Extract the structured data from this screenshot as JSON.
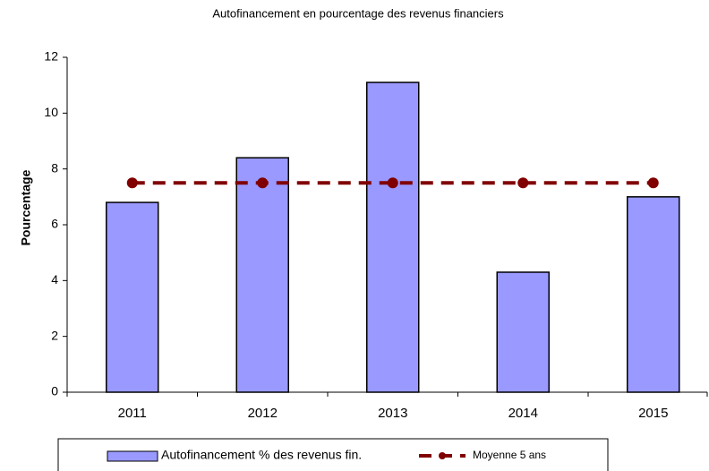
{
  "chart_data": {
    "type": "bar",
    "title": "Autofinancement en pourcentage des revenus financiers",
    "y_label": "Pourcentage",
    "categories": [
      "2011",
      "2012",
      "2013",
      "2014",
      "2015"
    ],
    "series": [
      {
        "name": "Autofinancement % des revenus fin.",
        "color": "#9999ff",
        "type": "bar",
        "values": [
          6.8,
          8.4,
          11.1,
          4.3,
          7.0
        ]
      },
      {
        "name": "Moyenne 5 ans",
        "color": "#800000",
        "type": "line",
        "values": [
          7.5,
          7.5,
          7.5,
          7.5,
          7.5
        ]
      }
    ],
    "ylim": [
      0,
      12
    ],
    "yticks": [
      0,
      2,
      4,
      6,
      8,
      10,
      12
    ],
    "grid": false,
    "legend": "bottom"
  }
}
